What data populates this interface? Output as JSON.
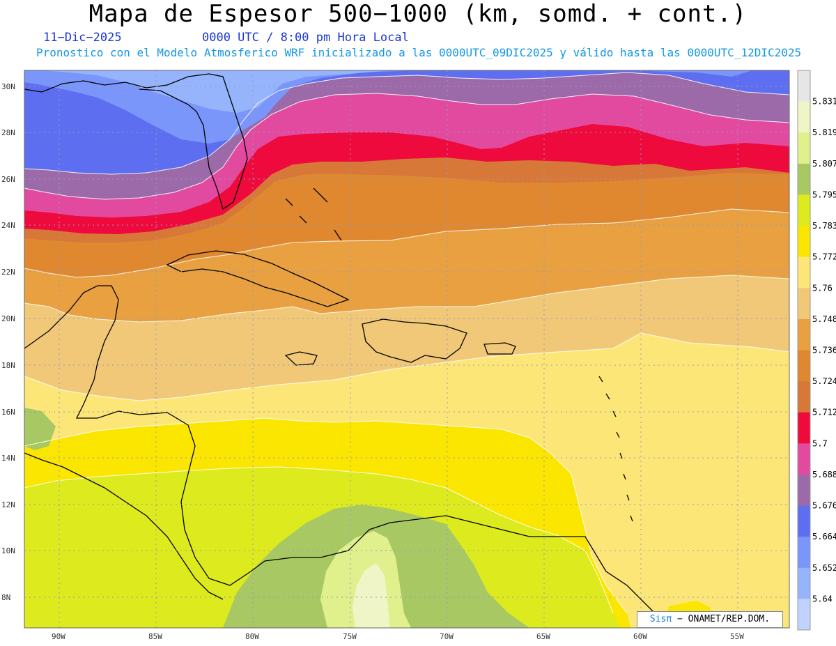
{
  "header": {
    "title": "Mapa de Espesor 500−1000 (km, somd. + cont.)",
    "date": "11−Dic−2025",
    "time": "0000 UTC / 8:00 pm Hora Local",
    "forecast_line": "Pronostico con el Modelo Atmosferico WRF inicializado a las 0000UTC_09DIC2025 y válido hasta las  0000UTC_12DIC2025"
  },
  "map": {
    "lat_labels": [
      "30N",
      "28N",
      "26N",
      "24N",
      "22N",
      "20N",
      "18N",
      "16N",
      "14N",
      "12N",
      "10N",
      "8N"
    ],
    "lon_labels": [
      "90W",
      "85W",
      "80W",
      "75W",
      "70W",
      "65W",
      "60W",
      "55W"
    ],
    "gridlines": true
  },
  "colorbar": {
    "labels": [
      "5.831",
      "5.819",
      "5.807",
      "5.795",
      "5.783",
      "5.772",
      "5.76",
      "5.748",
      "5.736",
      "5.724",
      "5.712",
      "5.7",
      "5.688",
      "5.676",
      "5.664",
      "5.652",
      "5.64"
    ],
    "colors": [
      "#e6e6e6",
      "#f0f5c8",
      "#dff08c",
      "#a8c864",
      "#dcea1e",
      "#fae600",
      "#fde678",
      "#f0c878",
      "#e8a040",
      "#e08830",
      "#d87838",
      "#ee0a3c",
      "#e24aa0",
      "#9c6aa8",
      "#5e6ef0",
      "#7a96fa",
      "#96b4fc",
      "#c2d2ff"
    ]
  },
  "credit": {
    "sis": "Sisπ",
    "rest": "− ONAMET/REP.DOM."
  }
}
